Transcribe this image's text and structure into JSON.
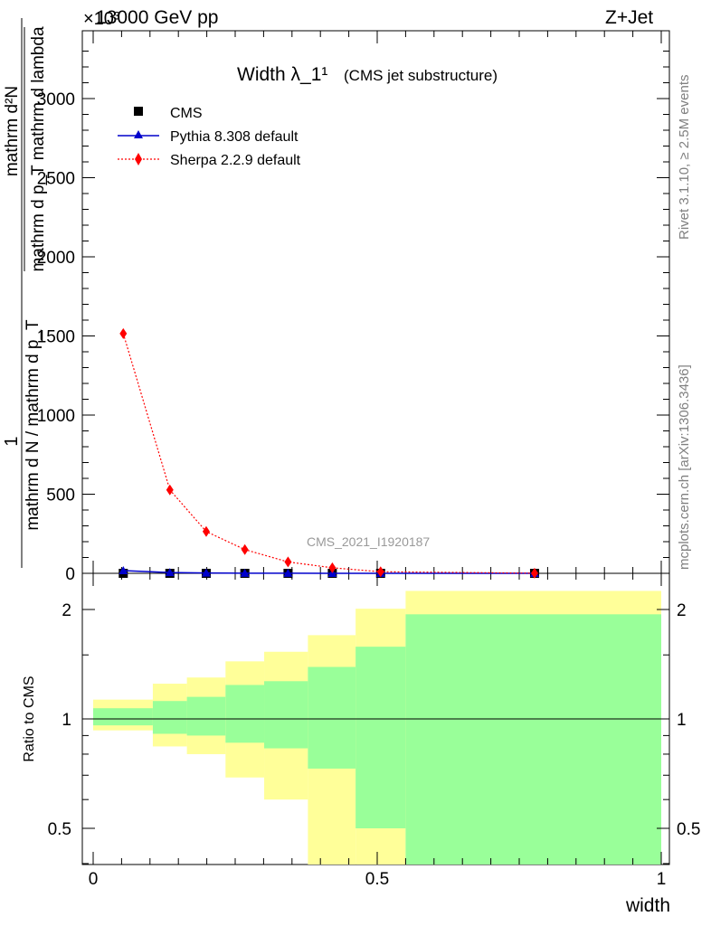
{
  "header": {
    "energy_label": "13000 GeV pp",
    "process_label": "Z+Jet",
    "exponent_label": "×10³"
  },
  "side_labels": {
    "rivet": "Rivet 3.1.10, ≥ 2.5M events",
    "mcplots": "mcplots.cern.ch [arXiv:1306.3436]"
  },
  "chart_data": [
    {
      "type": "line",
      "title": "Width λ_1¹",
      "subtitle": "(CMS jet substructure)",
      "watermark": "CMS_2021_I1920187",
      "ylabel_numerator": "1",
      "ylabel_frac_top": "mathrm d²N",
      "ylabel_frac_bottom": "mathrm d p_T mathrm d lambda",
      "ylabel_denominator": "mathrm d N / mathrm d p_T",
      "xlim": [
        -0.02,
        1.02
      ],
      "ylim": [
        0,
        3500
      ],
      "yticks": [
        0,
        500,
        1000,
        1500,
        2000,
        2500,
        3000
      ],
      "yticks_unit_note": "values in units of 10^3",
      "legend_position": "top-left",
      "series": [
        {
          "name": "CMS",
          "color": "#000000",
          "marker": "square",
          "x": [
            0.053,
            0.135,
            0.199,
            0.267,
            0.343,
            0.421,
            0.506,
            0.777
          ],
          "y": [
            0,
            0,
            0,
            0,
            0,
            0,
            0,
            0
          ]
        },
        {
          "name": "Pythia 8.308 default",
          "color": "#0000cc",
          "marker": "triangle",
          "line": "solid",
          "x": [
            0.053,
            0.135,
            0.199,
            0.267,
            0.343,
            0.421,
            0.506,
            0.777
          ],
          "y": [
            17,
            5,
            2,
            1,
            0.5,
            0.3,
            0.1,
            0.05
          ]
        },
        {
          "name": "Sherpa 2.2.9 default",
          "color": "#ff0000",
          "marker": "diamond",
          "line": "dotted",
          "x": [
            0.053,
            0.135,
            0.199,
            0.267,
            0.343,
            0.421,
            0.506,
            0.777
          ],
          "y": [
            1515,
            527,
            264,
            150,
            72,
            35,
            10,
            1
          ]
        }
      ]
    },
    {
      "type": "area",
      "ylabel": "Ratio to CMS",
      "xlabel": "width",
      "xlim": [
        -0.02,
        1.02
      ],
      "ylim": [
        0.35,
        2.25
      ],
      "yticks": [
        0.5,
        1,
        2
      ],
      "xticks": [
        0,
        0.5,
        1
      ],
      "reference_line": 1,
      "bands": {
        "bin_edges": [
          0,
          0.105,
          0.165,
          0.233,
          0.301,
          0.378,
          0.462,
          0.55,
          1.0
        ],
        "inner_color": "#99ff99",
        "outer_color": "#ffff99",
        "inner_low": [
          0.96,
          0.91,
          0.9,
          0.86,
          0.83,
          0.73,
          0.5,
          0.35
        ],
        "inner_high": [
          1.07,
          1.12,
          1.15,
          1.24,
          1.27,
          1.39,
          1.58,
          1.94
        ],
        "outer_low": [
          0.93,
          0.84,
          0.8,
          0.69,
          0.6,
          0.35,
          0.35,
          0.35
        ],
        "outer_high": [
          1.13,
          1.25,
          1.3,
          1.44,
          1.53,
          1.7,
          2.01,
          2.25
        ]
      }
    }
  ]
}
